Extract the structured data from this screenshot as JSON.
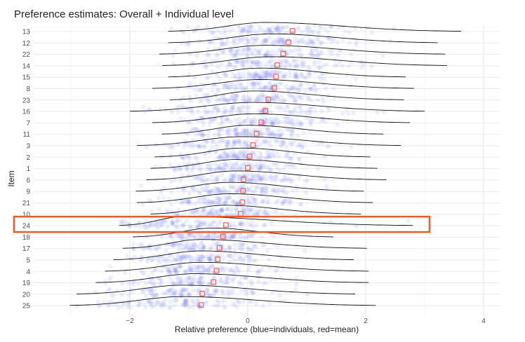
{
  "chart_data": {
    "type": "ridgeline",
    "title": "Preference estimates: Overall + Individual level",
    "xlabel": "Relative preference (blue=individuals, red=mean)",
    "ylabel": "Item",
    "xlim": [
      -3.95,
      4.1
    ],
    "xticks": [
      -2,
      0,
      2,
      4
    ],
    "grid": true,
    "legend": "none",
    "colors": {
      "individuals": "#4a55f0",
      "mean": "#ef6a5a",
      "highlight": "#ef5a28",
      "density": "#111111"
    },
    "items": [
      {
        "item": "13",
        "mean": 0.76,
        "min": -1.35,
        "max": 3.62,
        "peak": 0.3
      },
      {
        "item": "12",
        "mean": 0.69,
        "min": -1.35,
        "max": 3.22,
        "peak": 0.4
      },
      {
        "item": "22",
        "mean": 0.6,
        "min": -1.5,
        "max": 3.35,
        "peak": 0.3
      },
      {
        "item": "14",
        "mean": 0.5,
        "min": -1.45,
        "max": 3.38,
        "peak": 0.4
      },
      {
        "item": "15",
        "mean": 0.48,
        "min": -1.35,
        "max": 2.68,
        "peak": 0.2
      },
      {
        "item": "8",
        "mean": 0.45,
        "min": -1.62,
        "max": 2.82,
        "peak": 0.2
      },
      {
        "item": "23",
        "mean": 0.35,
        "min": -1.32,
        "max": 2.65,
        "peak": 0.1
      },
      {
        "item": "16",
        "mean": 0.3,
        "min": -2.0,
        "max": 3.0,
        "peak": 0.1
      },
      {
        "item": "7",
        "mean": 0.23,
        "min": -1.62,
        "max": 2.75,
        "peak": 0.1
      },
      {
        "item": "11",
        "mean": 0.15,
        "min": -1.46,
        "max": 2.3,
        "peak": 0.0
      },
      {
        "item": "3",
        "mean": 0.09,
        "min": -1.88,
        "max": 2.6,
        "peak": -0.1
      },
      {
        "item": "2",
        "mean": 0.03,
        "min": -1.58,
        "max": 2.08,
        "peak": -0.1
      },
      {
        "item": "1",
        "mean": 0.0,
        "min": -1.65,
        "max": 2.2,
        "peak": -0.2
      },
      {
        "item": "6",
        "mean": -0.07,
        "min": -1.72,
        "max": 2.35,
        "peak": -0.2
      },
      {
        "item": "9",
        "mean": -0.08,
        "min": -1.9,
        "max": 1.97,
        "peak": -0.3
      },
      {
        "item": "21",
        "mean": -0.09,
        "min": -1.88,
        "max": 2.12,
        "peak": -0.3
      },
      {
        "item": "10",
        "mean": -0.12,
        "min": -1.65,
        "max": 1.92,
        "peak": -0.4
      },
      {
        "item": "24",
        "mean": -0.37,
        "min": -2.18,
        "max": 2.8,
        "peak": -1.1
      },
      {
        "item": "18",
        "mean": -0.42,
        "min": -1.95,
        "max": 1.45,
        "peak": -0.6
      },
      {
        "item": "17",
        "mean": -0.48,
        "min": -2.12,
        "max": 2.02,
        "peak": -0.8
      },
      {
        "item": "5",
        "mean": -0.51,
        "min": -2.28,
        "max": 1.8,
        "peak": -0.8
      },
      {
        "item": "4",
        "mean": -0.53,
        "min": -2.42,
        "max": 2.05,
        "peak": -0.8
      },
      {
        "item": "19",
        "mean": -0.58,
        "min": -2.58,
        "max": 2.05,
        "peak": -0.9
      },
      {
        "item": "20",
        "mean": -0.77,
        "min": -2.9,
        "max": 1.82,
        "peak": -1.1
      },
      {
        "item": "25",
        "mean": -0.79,
        "min": -3.02,
        "max": 2.17,
        "peak": -1.1
      }
    ],
    "highlighted_item": "24"
  }
}
